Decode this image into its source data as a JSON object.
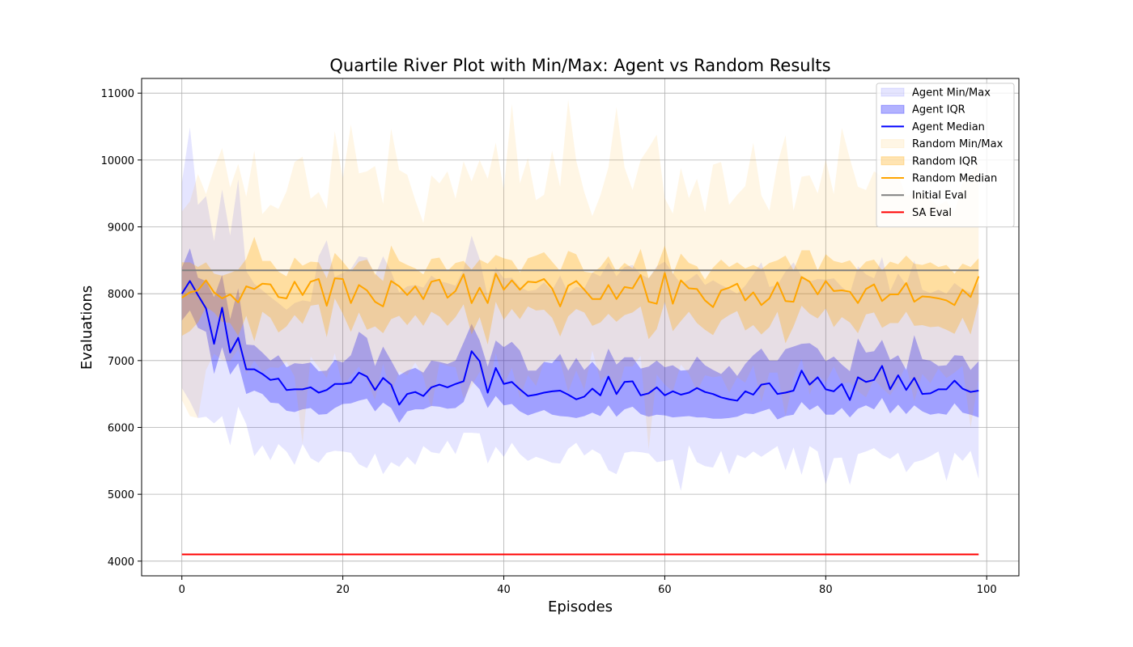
{
  "chart_data": {
    "type": "area",
    "title": "Quartile River Plot with Min/Max: Agent vs Random Results",
    "xlabel": "Episodes",
    "ylabel": "Evaluations",
    "xlim": [
      -5,
      104
    ],
    "ylim": [
      3780,
      11220
    ],
    "xticks": [
      0,
      20,
      40,
      60,
      80,
      100
    ],
    "yticks": [
      4000,
      5000,
      6000,
      7000,
      8000,
      9000,
      10000,
      11000
    ],
    "grid": true,
    "legend_position": "top-right",
    "x_start": 0,
    "legend": [
      {
        "label": "Agent Min/Max",
        "kind": "band",
        "color": "#0000ff",
        "opacity": 0.1
      },
      {
        "label": "Agent IQR",
        "kind": "band",
        "color": "#0000ff",
        "opacity": 0.3
      },
      {
        "label": "Agent Median",
        "kind": "line",
        "color": "#0000ff"
      },
      {
        "label": "Random Min/Max",
        "kind": "band",
        "color": "#ffa500",
        "opacity": 0.1
      },
      {
        "label": "Random IQR",
        "kind": "band",
        "color": "#ffa500",
        "opacity": 0.3
      },
      {
        "label": "Random Median",
        "kind": "line",
        "color": "#ffa500"
      },
      {
        "label": "Initial Eval",
        "kind": "line",
        "color": "#808080"
      },
      {
        "label": "SA Eval",
        "kind": "line",
        "color": "#ff0000"
      }
    ],
    "series": [
      {
        "name": "Agent Median",
        "color": "#0000ff",
        "values": [
          8000,
          8190,
          7980,
          7780,
          7250,
          7790,
          7120,
          7340,
          6870,
          6870,
          6800,
          6710,
          6730,
          6560,
          6570,
          6570,
          6600,
          6520,
          6560,
          6650,
          6650,
          6670,
          6820,
          6760,
          6560,
          6740,
          6640,
          6340,
          6500,
          6530,
          6470,
          6600,
          6640,
          6600,
          6650,
          6690,
          7140,
          6990,
          6520,
          6890,
          6650,
          6680,
          6570,
          6470,
          6490,
          6520,
          6540,
          6550,
          6490,
          6420,
          6460,
          6580,
          6480,
          6760,
          6500,
          6680,
          6690,
          6480,
          6510,
          6600,
          6480,
          6540,
          6490,
          6520,
          6590,
          6530,
          6500,
          6450,
          6420,
          6400,
          6540,
          6490,
          6640,
          6660,
          6500,
          6520,
          6550,
          6850,
          6640,
          6750,
          6570,
          6540,
          6650,
          6410,
          6750,
          6680,
          6710,
          6920,
          6570,
          6780,
          6560,
          6740,
          6500,
          6510,
          6570,
          6570,
          6700,
          6580,
          6530,
          6550
        ]
      },
      {
        "name": "Agent IQR",
        "color": "#0000ff",
        "upper": [
          8390,
          8680,
          8240,
          8190,
          7950,
          8280,
          7620,
          8080,
          7240,
          7230,
          7120,
          7000,
          7080,
          6900,
          6960,
          6950,
          6970,
          6840,
          6850,
          7010,
          6970,
          7080,
          7430,
          7340,
          6920,
          7210,
          7000,
          6780,
          6850,
          6890,
          6820,
          7000,
          6980,
          6950,
          7000,
          7270,
          7550,
          7300,
          6910,
          7300,
          7200,
          7280,
          7150,
          6850,
          6850,
          6980,
          6960,
          7100,
          6850,
          7040,
          6860,
          6980,
          6840,
          7180,
          6940,
          7050,
          7050,
          6880,
          6910,
          7000,
          6900,
          6930,
          6850,
          6860,
          7060,
          6930,
          6860,
          6800,
          6920,
          6770,
          6950,
          7080,
          7180,
          7000,
          7000,
          7170,
          7210,
          7250,
          7260,
          7180,
          6990,
          7060,
          6940,
          6840,
          7330,
          7120,
          7140,
          7310,
          7010,
          7080,
          6860,
          7380,
          7020,
          7000,
          6920,
          6930,
          7080,
          7070,
          6860,
          6990
        ],
        "lower": [
          7600,
          7750,
          7490,
          7430,
          6800,
          7200,
          6790,
          6960,
          6500,
          6550,
          6500,
          6370,
          6360,
          6250,
          6230,
          6270,
          6290,
          6190,
          6200,
          6290,
          6350,
          6360,
          6400,
          6430,
          6240,
          6370,
          6290,
          6070,
          6240,
          6270,
          6270,
          6320,
          6310,
          6280,
          6290,
          6380,
          6700,
          6570,
          6290,
          6470,
          6330,
          6350,
          6240,
          6180,
          6220,
          6260,
          6190,
          6170,
          6160,
          6140,
          6170,
          6220,
          6170,
          6330,
          6160,
          6270,
          6310,
          6200,
          6160,
          6190,
          6180,
          6150,
          6160,
          6170,
          6150,
          6150,
          6130,
          6130,
          6140,
          6160,
          6210,
          6200,
          6240,
          6280,
          6120,
          6170,
          6190,
          6380,
          6260,
          6330,
          6190,
          6190,
          6290,
          6150,
          6280,
          6330,
          6270,
          6440,
          6210,
          6340,
          6200,
          6330,
          6240,
          6190,
          6210,
          6190,
          6360,
          6220,
          6190,
          6150
        ]
      },
      {
        "name": "Agent Min/Max",
        "color": "#0000ff",
        "upper": [
          9660,
          10490,
          9330,
          9460,
          8790,
          9560,
          8870,
          9710,
          8340,
          8150,
          8050,
          7950,
          7860,
          7760,
          7860,
          7900,
          7880,
          8560,
          8800,
          8250,
          8310,
          8370,
          8560,
          8540,
          8270,
          8560,
          8330,
          8020,
          8110,
          8130,
          8090,
          8270,
          8190,
          8160,
          8120,
          8360,
          8870,
          8520,
          7950,
          8400,
          8230,
          8240,
          8100,
          8040,
          8060,
          8170,
          8050,
          8270,
          8010,
          8100,
          8080,
          8320,
          8260,
          8470,
          8260,
          8400,
          8430,
          8290,
          8230,
          8410,
          8480,
          8310,
          8150,
          8210,
          8300,
          8130,
          8200,
          8130,
          8070,
          8000,
          8120,
          8290,
          8470,
          8100,
          8130,
          8330,
          8470,
          8260,
          8180,
          8220,
          8210,
          8230,
          8100,
          8000,
          8410,
          8290,
          8230,
          8550,
          8040,
          8300,
          8130,
          8500,
          8060,
          8010,
          8060,
          8000,
          8160,
          8070,
          8020,
          8170
        ],
        "lower": [
          6590,
          6390,
          6140,
          6160,
          6060,
          6170,
          5730,
          6310,
          6050,
          5570,
          5730,
          5510,
          5750,
          5640,
          5440,
          5750,
          5540,
          5470,
          5620,
          5650,
          5640,
          5620,
          5450,
          5390,
          5610,
          5300,
          5480,
          5410,
          5560,
          5440,
          5720,
          5630,
          5610,
          5800,
          5600,
          5920,
          5920,
          5910,
          5460,
          5710,
          5560,
          5770,
          5600,
          5500,
          5560,
          5520,
          5470,
          5460,
          5680,
          5770,
          5580,
          5670,
          5600,
          5360,
          5300,
          5620,
          5640,
          5630,
          5610,
          5480,
          5500,
          5520,
          5050,
          5730,
          5480,
          5420,
          5400,
          5650,
          5300,
          5590,
          5540,
          5640,
          5560,
          5640,
          5720,
          5360,
          5700,
          5290,
          5720,
          5640,
          5150,
          5540,
          5550,
          5140,
          5600,
          5640,
          5690,
          5590,
          5530,
          5620,
          5330,
          5480,
          5510,
          5570,
          5640,
          5200,
          5620,
          5500,
          5650,
          5230
        ]
      },
      {
        "name": "Random Median",
        "color": "#ffa500",
        "values": [
          7940,
          8020,
          8050,
          8200,
          8020,
          7930,
          7990,
          7870,
          8110,
          8070,
          8150,
          8140,
          7950,
          7930,
          8180,
          7980,
          8180,
          8220,
          7820,
          8230,
          8220,
          7860,
          8130,
          8050,
          7880,
          7810,
          8190,
          8110,
          7980,
          8110,
          7920,
          8180,
          8210,
          7940,
          8040,
          8290,
          7860,
          8090,
          7860,
          8300,
          8060,
          8200,
          8060,
          8180,
          8170,
          8220,
          8080,
          7810,
          8120,
          8190,
          8060,
          7920,
          7920,
          8130,
          7920,
          8100,
          8080,
          8280,
          7880,
          7850,
          8310,
          7850,
          8200,
          8080,
          8070,
          7900,
          7800,
          8050,
          8090,
          8150,
          7900,
          8020,
          7830,
          7930,
          8170,
          7890,
          7880,
          8250,
          8180,
          7990,
          8190,
          8040,
          8050,
          8030,
          7860,
          8070,
          8140,
          7890,
          7990,
          7990,
          8160,
          7880,
          7960,
          7950,
          7930,
          7900,
          7830,
          8060,
          7950,
          8260
        ]
      },
      {
        "name": "Random IQR",
        "color": "#ffa500",
        "upper": [
          8470,
          8470,
          8400,
          8470,
          8300,
          8270,
          8310,
          8360,
          8520,
          8850,
          8490,
          8490,
          8330,
          8260,
          8540,
          8420,
          8480,
          8470,
          8230,
          8610,
          8480,
          8330,
          8480,
          8510,
          8300,
          8190,
          8720,
          8490,
          8430,
          8380,
          8290,
          8520,
          8540,
          8340,
          8460,
          8490,
          8360,
          8510,
          8450,
          8580,
          8530,
          8500,
          8320,
          8530,
          8570,
          8620,
          8480,
          8340,
          8640,
          8590,
          8330,
          8310,
          8400,
          8560,
          8330,
          8460,
          8380,
          8670,
          8230,
          8390,
          8720,
          8290,
          8600,
          8460,
          8410,
          8210,
          8390,
          8510,
          8400,
          8470,
          8380,
          8430,
          8370,
          8460,
          8500,
          8570,
          8350,
          8650,
          8650,
          8350,
          8590,
          8490,
          8460,
          8500,
          8350,
          8480,
          8510,
          8350,
          8480,
          8440,
          8570,
          8450,
          8430,
          8470,
          8400,
          8430,
          8300,
          8450,
          8400,
          8530
        ],
        "lower": [
          7370,
          7440,
          7570,
          7800,
          7720,
          7580,
          7560,
          7370,
          7670,
          7290,
          7730,
          7640,
          7420,
          7510,
          7680,
          7550,
          7820,
          7840,
          7350,
          7930,
          7700,
          7430,
          7720,
          7460,
          7510,
          7410,
          7620,
          7670,
          7530,
          7680,
          7520,
          7730,
          7660,
          7520,
          7650,
          7840,
          7390,
          7650,
          7240,
          7880,
          7610,
          7770,
          7620,
          7810,
          7750,
          7760,
          7640,
          7360,
          7660,
          7770,
          7720,
          7520,
          7570,
          7700,
          7580,
          7680,
          7720,
          7810,
          7320,
          7470,
          7880,
          7440,
          7590,
          7730,
          7560,
          7460,
          7380,
          7600,
          7680,
          7740,
          7450,
          7530,
          7390,
          7500,
          7730,
          7260,
          7510,
          7820,
          7700,
          7630,
          7780,
          7500,
          7650,
          7570,
          7410,
          7690,
          7720,
          7490,
          7560,
          7560,
          7730,
          7520,
          7530,
          7500,
          7510,
          7460,
          7400,
          7640,
          7390,
          7870
        ]
      },
      {
        "name": "Random Min/Max",
        "color": "#ffa500",
        "upper": [
          9230,
          9380,
          9790,
          9490,
          9870,
          10180,
          9590,
          9940,
          9450,
          10140,
          9190,
          9330,
          9270,
          9530,
          9970,
          10050,
          9420,
          9520,
          9270,
          10430,
          9720,
          10530,
          9800,
          9830,
          9910,
          9340,
          10470,
          9850,
          9780,
          9400,
          9060,
          9770,
          9650,
          9830,
          9420,
          9980,
          9680,
          10000,
          9720,
          10260,
          9550,
          10840,
          9650,
          10030,
          9400,
          9480,
          10140,
          9600,
          10900,
          9990,
          9520,
          9160,
          9470,
          9890,
          10790,
          9890,
          9550,
          10000,
          10180,
          10380,
          9430,
          9200,
          9880,
          9430,
          9720,
          9220,
          9930,
          9970,
          9330,
          9480,
          9610,
          10260,
          9470,
          9240,
          9940,
          10370,
          9240,
          9750,
          9770,
          9500,
          10010,
          9490,
          10480,
          10020,
          9600,
          9550,
          9830,
          9750,
          9870,
          9770,
          9460,
          9510,
          9530,
          9410,
          9320,
          9390,
          9210,
          9670,
          9760,
          9950
        ],
        "lower": [
          6410,
          6170,
          6140,
          6860,
          7100,
          7010,
          6990,
          7170,
          6800,
          7000,
          6830,
          6900,
          6890,
          6980,
          6760,
          5750,
          7060,
          6900,
          6740,
          7110,
          6610,
          6770,
          6910,
          6700,
          6410,
          6950,
          6500,
          6840,
          6780,
          6970,
          6760,
          6280,
          6960,
          6920,
          6900,
          6430,
          6620,
          6830,
          6530,
          7110,
          6640,
          6890,
          6440,
          6780,
          6620,
          6980,
          7020,
          6990,
          6530,
          6850,
          6560,
          7150,
          6700,
          6800,
          6450,
          6910,
          6910,
          7070,
          5670,
          6790,
          6640,
          6540,
          6940,
          6800,
          6540,
          6780,
          6750,
          6770,
          6520,
          6750,
          6670,
          6930,
          6380,
          6820,
          6820,
          6160,
          6730,
          7030,
          6490,
          6790,
          6670,
          6910,
          6660,
          6670,
          6540,
          6450,
          6720,
          6590,
          6480,
          6670,
          6940,
          6390,
          6800,
          6660,
          6880,
          6740,
          6820,
          6920,
          6000,
          6720
        ]
      },
      {
        "name": "Initial Eval",
        "color": "#808080",
        "constant": 8350,
        "x_range": [
          0,
          99
        ]
      },
      {
        "name": "SA Eval",
        "color": "#ff0000",
        "constant": 4100,
        "x_range": [
          0,
          99
        ]
      }
    ]
  }
}
